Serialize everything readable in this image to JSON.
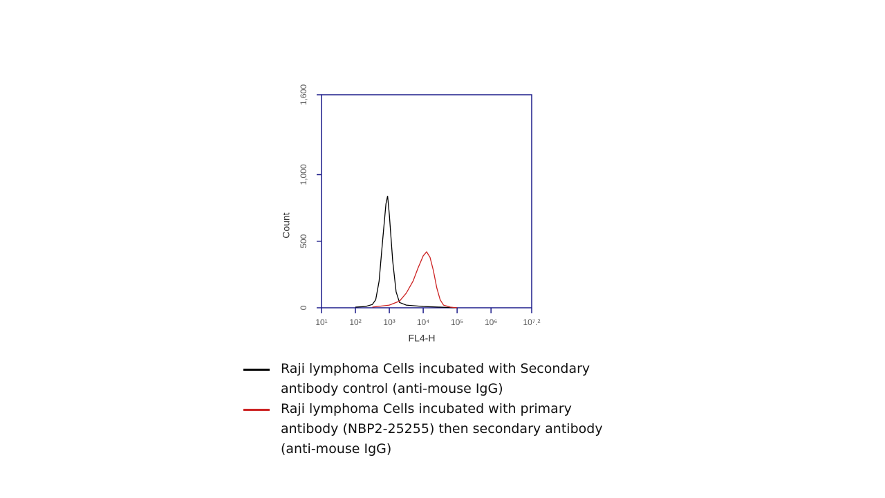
{
  "chart_data": {
    "type": "line",
    "x_label": "FL4-H",
    "y_label": "Count",
    "xscale": "log",
    "xlim": [
      10,
      15848932
    ],
    "ylim": [
      0,
      1600
    ],
    "xticks": [
      {
        "value": 10,
        "label": "10¹"
      },
      {
        "value": 100,
        "label": "10²"
      },
      {
        "value": 1000,
        "label": "10³"
      },
      {
        "value": 10000,
        "label": "10⁴"
      },
      {
        "value": 100000,
        "label": "10⁵"
      },
      {
        "value": 1000000,
        "label": "10⁶"
      },
      {
        "value": 15848932,
        "label": "10⁷.²"
      }
    ],
    "yticks": [
      0,
      500,
      {
        "value": 1000,
        "label": "1,000"
      },
      {
        "value": 1600,
        "label": "1,600"
      }
    ],
    "axis_color": "#1c1c8a",
    "series": [
      {
        "name": "Raji lymphoma Cells incubated with Secondary antibody control (anti-mouse IgG)",
        "color": "#000000",
        "x": [
          100,
          200,
          316,
          398,
          501,
          631,
          794,
          891,
          1000,
          1259,
          1585,
          1995,
          3162,
          10000,
          31623,
          100000
        ],
        "values": [
          5,
          10,
          25,
          60,
          200,
          500,
          780,
          840,
          700,
          350,
          120,
          40,
          20,
          10,
          5,
          0
        ]
      },
      {
        "name": "Raji lymphoma Cells incubated with primary antibody (NBP2-25255) then secondary antibody (anti-mouse IgG)",
        "color": "#cc2222",
        "x": [
          316,
          1000,
          1995,
          3162,
          5012,
          7079,
          10000,
          12589,
          15849,
          19953,
          25119,
          31623,
          39811,
          63096,
          100000
        ],
        "values": [
          5,
          20,
          50,
          110,
          200,
          300,
          390,
          420,
          380,
          280,
          150,
          60,
          20,
          5,
          0
        ]
      }
    ]
  }
}
